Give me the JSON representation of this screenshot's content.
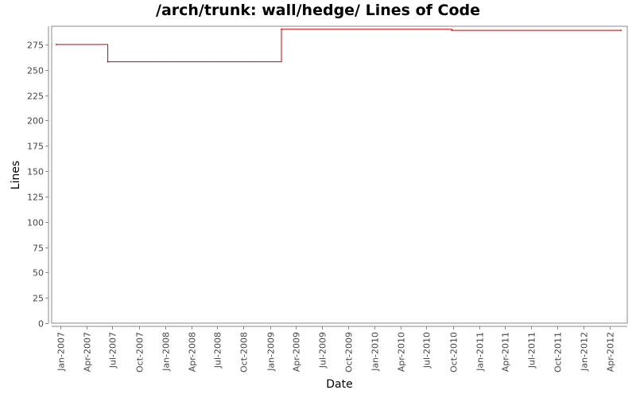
{
  "chart_data": {
    "type": "line",
    "title": "/arch/trunk: wall/hedge/ Lines of Code",
    "xlabel": "Date",
    "ylabel": "Lines",
    "x_axis": "time",
    "xlim": [
      "2006-12-01",
      "2012-06-01"
    ],
    "ylim": [
      0,
      293
    ],
    "y_ticks": [
      0,
      25,
      50,
      75,
      100,
      125,
      150,
      175,
      200,
      225,
      250,
      275
    ],
    "x_ticks": [
      {
        "date": "2007-01-01",
        "label": "Jan-2007"
      },
      {
        "date": "2007-04-01",
        "label": "Apr-2007"
      },
      {
        "date": "2007-07-01",
        "label": "Jul-2007"
      },
      {
        "date": "2007-10-01",
        "label": "Oct-2007"
      },
      {
        "date": "2008-01-01",
        "label": "Jan-2008"
      },
      {
        "date": "2008-04-01",
        "label": "Apr-2008"
      },
      {
        "date": "2008-07-01",
        "label": "Jul-2008"
      },
      {
        "date": "2008-10-01",
        "label": "Oct-2008"
      },
      {
        "date": "2009-01-01",
        "label": "Jan-2009"
      },
      {
        "date": "2009-04-01",
        "label": "Apr-2009"
      },
      {
        "date": "2009-07-01",
        "label": "Jul-2009"
      },
      {
        "date": "2009-10-01",
        "label": "Oct-2009"
      },
      {
        "date": "2010-01-01",
        "label": "Jan-2010"
      },
      {
        "date": "2010-04-01",
        "label": "Apr-2010"
      },
      {
        "date": "2010-07-01",
        "label": "Jul-2010"
      },
      {
        "date": "2010-10-01",
        "label": "Oct-2010"
      },
      {
        "date": "2011-01-01",
        "label": "Jan-2011"
      },
      {
        "date": "2011-04-01",
        "label": "Apr-2011"
      },
      {
        "date": "2011-07-01",
        "label": "Jul-2011"
      },
      {
        "date": "2011-10-01",
        "label": "Oct-2011"
      },
      {
        "date": "2012-01-01",
        "label": "Jan-2012"
      },
      {
        "date": "2012-04-01",
        "label": "Apr-2012"
      }
    ],
    "grid": false,
    "step": true,
    "series": [
      {
        "color": "#cc0000",
        "points": [
          {
            "x": "2006-12-17",
            "y": 275
          },
          {
            "x": "2007-06-15",
            "y": 258
          },
          {
            "x": "2009-02-10",
            "y": 290
          },
          {
            "x": "2010-09-28",
            "y": 289
          },
          {
            "x": "2012-05-10",
            "y": 289
          }
        ]
      }
    ]
  }
}
